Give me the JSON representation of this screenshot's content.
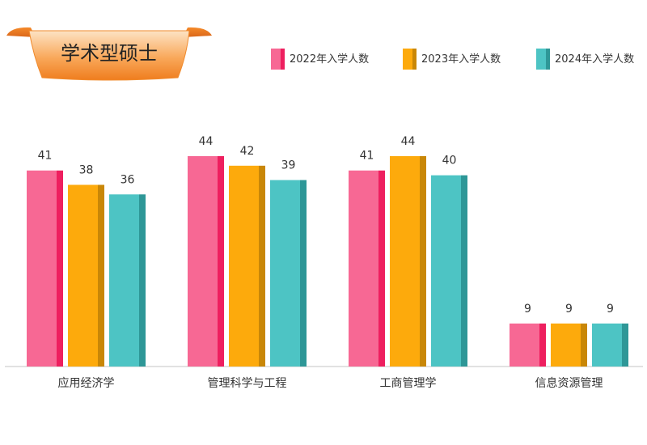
{
  "chart_data": {
    "type": "bar",
    "title": "学术型硕士",
    "categories": [
      "应用经济学",
      "管理科学与工程",
      "工商管理学",
      "信息资源管理"
    ],
    "series": [
      {
        "name": "2022年入学人数",
        "values": [
          41,
          44,
          41,
          9
        ],
        "color": "#f76894",
        "side_color": "#ee1f5f"
      },
      {
        "name": "2023年入学人数",
        "values": [
          38,
          42,
          44,
          9
        ],
        "color": "#fdaa0c",
        "side_color": "#c98707"
      },
      {
        "name": "2024年入学人数",
        "values": [
          36,
          39,
          40,
          9
        ],
        "color": "#4dc4c4",
        "side_color": "#2e9797"
      }
    ],
    "ylim": [
      0,
      44
    ],
    "grid": false,
    "legend_position": "top-right",
    "title_banner_color": "#f7962e"
  }
}
